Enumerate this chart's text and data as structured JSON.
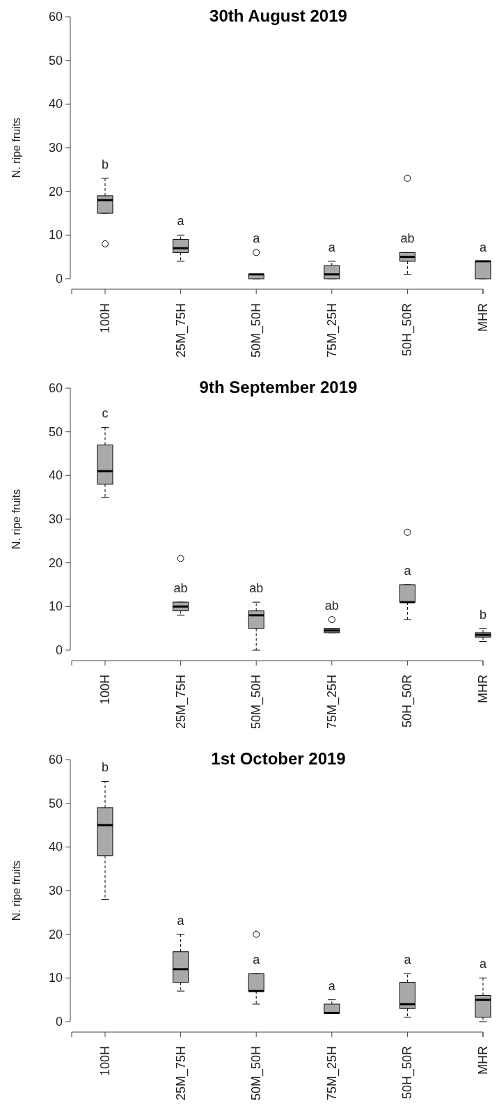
{
  "chart_data": [
    {
      "type": "box",
      "title": "30th August 2019",
      "ylabel": "N. ripe fruits",
      "categories": [
        "100H",
        "25M_75H",
        "50M_50H",
        "75M_25H",
        "50H_50R",
        "MHR"
      ],
      "color": "#a9a9a9",
      "boxes": [
        {
          "low": 15,
          "q1": 15,
          "median": 18,
          "q3": 19,
          "high": 23,
          "outliers": [
            8
          ]
        },
        {
          "low": 4,
          "q1": 6,
          "median": 7,
          "q3": 9,
          "high": 10
        },
        {
          "low": 0,
          "q1": 0,
          "median": 1,
          "q3": 1,
          "high": 1,
          "outliers": [
            6
          ]
        },
        {
          "low": 0,
          "q1": 0,
          "median": 1,
          "q3": 3,
          "high": 4
        },
        {
          "low": 1,
          "q1": 4,
          "median": 5,
          "q3": 6,
          "high": 6,
          "outliers": [
            23
          ]
        },
        {
          "low": 0,
          "q1": 0,
          "median": 4,
          "q3": 4,
          "high": 4
        }
      ],
      "ylim": [
        0,
        60
      ],
      "yticks": [
        0,
        10,
        20,
        30,
        40,
        50,
        60
      ],
      "annotations": [
        "b",
        "a",
        "a",
        "a",
        "ab",
        "a"
      ]
    },
    {
      "type": "box",
      "title": "9th September 2019",
      "ylabel": "N. ripe fruits",
      "categories": [
        "100H",
        "25M_75H",
        "50M_50H",
        "75M_25H",
        "50H_50R",
        "MHR"
      ],
      "color": "#a9a9a9",
      "boxes": [
        {
          "low": 35,
          "q1": 38,
          "median": 41,
          "q3": 47,
          "high": 51
        },
        {
          "low": 8,
          "q1": 9,
          "median": 10,
          "q3": 11,
          "high": 11,
          "outliers": [
            21
          ]
        },
        {
          "low": 0,
          "q1": 5,
          "median": 8,
          "q3": 9,
          "high": 11
        },
        {
          "low": 4,
          "q1": 4,
          "median": 4.5,
          "q3": 5,
          "high": 5,
          "outliers": [
            7
          ]
        },
        {
          "low": 7,
          "q1": 11,
          "median": 11,
          "q3": 15,
          "high": 15,
          "outliers": [
            27
          ]
        },
        {
          "low": 2,
          "q1": 3,
          "median": 3.5,
          "q3": 4,
          "high": 5
        }
      ],
      "ylim": [
        0,
        60
      ],
      "yticks": [
        0,
        10,
        20,
        30,
        40,
        50,
        60
      ],
      "annotations": [
        "c",
        "ab",
        "ab",
        "ab",
        "a",
        "b"
      ]
    },
    {
      "type": "box",
      "title": "1st October 2019",
      "ylabel": "N. ripe fruits",
      "categories": [
        "100H",
        "25M_75H",
        "50M_50H",
        "75M_25H",
        "50H_50R",
        "MHR"
      ],
      "color": "#a9a9a9",
      "boxes": [
        {
          "low": 28,
          "q1": 38,
          "median": 45,
          "q3": 49,
          "high": 55
        },
        {
          "low": 7,
          "q1": 9,
          "median": 12,
          "q3": 16,
          "high": 20
        },
        {
          "low": 4,
          "q1": 7,
          "median": 7,
          "q3": 11,
          "high": 11,
          "outliers": [
            20
          ]
        },
        {
          "low": 2,
          "q1": 2,
          "median": 2,
          "q3": 4,
          "high": 5
        },
        {
          "low": 1,
          "q1": 3,
          "median": 4,
          "q3": 9,
          "high": 11
        },
        {
          "low": 0,
          "q1": 1,
          "median": 5,
          "q3": 6,
          "high": 10
        }
      ],
      "ylim": [
        0,
        60
      ],
      "yticks": [
        0,
        10,
        20,
        30,
        40,
        50,
        60
      ],
      "annotations": [
        "b",
        "a",
        "a",
        "a",
        "a",
        "a"
      ]
    }
  ]
}
